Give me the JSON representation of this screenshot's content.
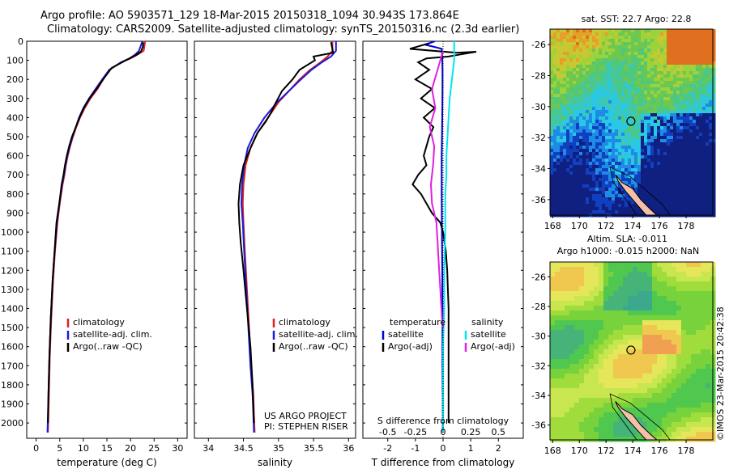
{
  "header": {
    "line1": "Argo profile: AO 5903571_129 18-Mar-2015 20150318_1094 30.943S 173.864E",
    "line2": "Climatology: CARS2009. Satellite-adjusted climatology: synTS_20150316.nc (2.3d earlier)"
  },
  "colors": {
    "climatology": "#e0201c",
    "satellite": "#1a1adc",
    "argo": "#000000",
    "satellite_t": "#0000dd",
    "satellite_s": "#00e6f0",
    "argo_s": "#e020e0"
  },
  "chart_data": [
    {
      "type": "line",
      "xlabel": "temperature (deg C)",
      "ylabel": "",
      "xlim": [
        -2,
        32
      ],
      "ylim": [
        2080,
        0
      ],
      "xticks": [
        0,
        5,
        10,
        15,
        20,
        25,
        30
      ],
      "yticks": [
        0,
        100,
        200,
        300,
        400,
        500,
        600,
        700,
        800,
        900,
        1000,
        1100,
        1200,
        1300,
        1400,
        1500,
        1600,
        1700,
        1800,
        1900,
        2000
      ],
      "legend": {
        "placement": "lower-left",
        "labels": [
          "climatology",
          "satellite-adj. clim.",
          "Argo(..raw -QC)"
        ]
      },
      "series": [
        {
          "name": "climatology",
          "x": [
            23.1,
            22.8,
            21.5,
            20,
            18,
            15.5,
            14.2,
            13,
            11.5,
            10.3,
            9.3,
            8.5,
            7.8,
            7.2,
            6.7,
            6.3,
            6,
            5.6,
            5,
            4.5,
            4,
            3.6,
            3.2,
            2.9,
            2.7,
            2.6,
            2.5
          ],
          "y": [
            0,
            50,
            70,
            90,
            110,
            150,
            200,
            250,
            300,
            350,
            400,
            450,
            500,
            550,
            600,
            650,
            700,
            750,
            850,
            950,
            1100,
            1250,
            1450,
            1650,
            1850,
            1950,
            2050
          ]
        },
        {
          "name": "satellite-adj. clim.",
          "x": [
            22.5,
            21.8,
            21,
            19.8,
            18,
            15.5,
            14,
            12.6,
            11.2,
            10,
            9.1,
            8.4,
            7.7,
            7.1,
            6.6,
            6.2,
            5.9,
            5.5,
            4.9,
            4.4,
            3.9,
            3.5,
            3.1,
            2.8,
            2.6,
            2.5,
            2.4
          ],
          "y": [
            0,
            50,
            70,
            90,
            110,
            150,
            200,
            250,
            300,
            350,
            400,
            450,
            500,
            550,
            600,
            650,
            700,
            750,
            850,
            950,
            1100,
            1250,
            1450,
            1650,
            1850,
            1950,
            2050
          ]
        },
        {
          "name": "Argo(..raw -QC)",
          "x": [
            22.7,
            22.6,
            22.2,
            21,
            19,
            16,
            14.2,
            12.8,
            11.3,
            10.1,
            9.2,
            8.4,
            7.6,
            7,
            6.5,
            6.1,
            5.8,
            5.4,
            4.9,
            4.3,
            3.9,
            3.5,
            3.1,
            2.8,
            2.6,
            2.5
          ],
          "y": [
            5,
            30,
            55,
            75,
            100,
            140,
            200,
            250,
            300,
            350,
            400,
            450,
            500,
            550,
            600,
            650,
            700,
            750,
            850,
            950,
            1100,
            1250,
            1450,
            1650,
            1850,
            2000
          ]
        }
      ]
    },
    {
      "type": "line",
      "xlabel": "salinity",
      "ylabel": "",
      "xlim": [
        33.8,
        36.1
      ],
      "ylim": [
        2080,
        0
      ],
      "xticks": [
        34,
        34.5,
        35,
        35.5,
        36
      ],
      "legend": {
        "placement": "lower-right",
        "labels": [
          "climatology",
          "satellite-adj. clim.",
          "Argo(..raw -QC)"
        ]
      },
      "annotations": [
        "US ARGO PROJECT",
        "PI: STEPHEN RISER"
      ],
      "series": [
        {
          "name": "climatology",
          "x": [
            35.77,
            35.77,
            35.7,
            35.6,
            35.45,
            35.3,
            35.15,
            35,
            34.85,
            34.7,
            34.6,
            34.53,
            34.5,
            34.49,
            34.5,
            34.52,
            34.55,
            34.58,
            34.61,
            34.64,
            34.65,
            34.66
          ],
          "y": [
            0,
            50,
            80,
            110,
            150,
            200,
            260,
            320,
            400,
            480,
            560,
            650,
            750,
            850,
            950,
            1100,
            1300,
            1500,
            1700,
            1850,
            1950,
            2050
          ]
        },
        {
          "name": "satellite-adj. clim.",
          "x": [
            35.82,
            35.82,
            35.75,
            35.62,
            35.47,
            35.32,
            35.15,
            34.98,
            34.8,
            34.66,
            34.56,
            34.51,
            34.48,
            34.47,
            34.49,
            34.51,
            34.54,
            34.57,
            34.6,
            34.63,
            34.64,
            34.65
          ],
          "y": [
            0,
            50,
            80,
            110,
            150,
            200,
            260,
            320,
            400,
            480,
            560,
            650,
            750,
            850,
            950,
            1100,
            1300,
            1500,
            1700,
            1850,
            1950,
            2050
          ]
        },
        {
          "name": "Argo(..raw -QC)",
          "x": [
            35.75,
            35.78,
            35.5,
            35.52,
            35.3,
            35.2,
            35.05,
            34.95,
            34.9,
            34.82,
            34.7,
            34.6,
            34.5,
            34.45,
            34.43,
            34.44,
            34.46,
            34.5,
            34.55,
            34.6,
            34.63,
            34.65
          ],
          "y": [
            5,
            60,
            80,
            100,
            150,
            200,
            260,
            330,
            370,
            420,
            480,
            560,
            650,
            750,
            850,
            950,
            1050,
            1200,
            1400,
            1600,
            1800,
            2000
          ]
        }
      ]
    },
    {
      "type": "line",
      "xlabel": "T difference from climatology",
      "xlabel_top": "S difference from climatology",
      "xlim": [
        -2.9,
        2.9
      ],
      "ylim": [
        2080,
        0
      ],
      "xticks": [
        -2,
        -1,
        0,
        1,
        2
      ],
      "xticks_top": [
        "-0.5",
        "-0.25",
        "0",
        "0.25",
        "0.5"
      ],
      "legend": {
        "placement": "lower",
        "labels": [
          "temperature",
          "satellite",
          "Argo(-adj)",
          "salinity",
          "satellite",
          "Argo(-adj)"
        ]
      },
      "series": [
        {
          "name": "satellite",
          "group": "temperature",
          "x": [
            -0.3,
            -0.5,
            -0.6,
            -0.3,
            -0.05,
            -0.03,
            -0.02,
            -0.02,
            -0.03,
            -0.05,
            -0.05,
            -0.04,
            -0.03,
            -0.02,
            -0.02,
            -0.01,
            -0.01
          ],
          "y": [
            0,
            10,
            20,
            30,
            40,
            80,
            150,
            250,
            400,
            600,
            800,
            1000,
            1200,
            1500,
            1700,
            1900,
            2050
          ]
        },
        {
          "name": "Argo(-adj)",
          "group": "temperature",
          "x": [
            -0.5,
            -1.2,
            0.5,
            1.2,
            0.8,
            0.2,
            -0.6,
            -0.9,
            -0.5,
            -1.0,
            -0.4,
            -0.8,
            -0.3,
            -0.7,
            -0.35,
            -0.5,
            -0.6,
            -0.7,
            -0.6,
            -0.9,
            -1.1,
            -0.8,
            -0.4,
            -0.1,
            0.0,
            0.1,
            0.15,
            0.2,
            0.2,
            0.2,
            0.2,
            0.2
          ],
          "y": [
            10,
            40,
            60,
            55,
            65,
            80,
            90,
            110,
            150,
            200,
            250,
            300,
            350,
            400,
            450,
            500,
            550,
            600,
            650,
            700,
            750,
            800,
            900,
            950,
            1000,
            1100,
            1200,
            1400,
            1600,
            1800,
            1900,
            2000
          ]
        },
        {
          "name": "satellite",
          "group": "salinity",
          "x": [
            0.1,
            0.1,
            0.08,
            0.06,
            0.05,
            0.04,
            0.03,
            0.03,
            0.02,
            0.02,
            0.02,
            0.01,
            0.01,
            0.0,
            0.0,
            0.0
          ],
          "y": [
            0,
            100,
            200,
            300,
            400,
            500,
            600,
            700,
            800,
            900,
            1000,
            1200,
            1400,
            1600,
            1800,
            2050
          ]
        },
        {
          "name": "Argo(-adj)",
          "group": "salinity",
          "x": [
            0.0,
            -0.05,
            -0.1,
            -0.07,
            -0.12,
            -0.08,
            -0.09,
            -0.11,
            -0.1,
            -0.06,
            -0.05,
            -0.04,
            -0.03,
            -0.02,
            -0.01,
            0.0
          ],
          "y": [
            50,
            150,
            250,
            350,
            450,
            550,
            650,
            750,
            850,
            950,
            1050,
            1150,
            1250,
            1350,
            1450,
            1500
          ]
        }
      ]
    },
    {
      "type": "heatmap",
      "title": "sat. SST: 22.7  Argo: 22.8",
      "xticks": [
        168,
        170,
        172,
        174,
        176,
        178
      ],
      "yticks": [
        -26,
        -28,
        -30,
        -32,
        -34,
        -36
      ],
      "xlim": [
        167.8,
        180
      ],
      "ylim": [
        -37,
        -25
      ],
      "marker": {
        "lon": 173.864,
        "lat": -30.943
      }
    },
    {
      "type": "heatmap",
      "title": "Altim. SLA: -0.011",
      "subtitle": "Argo h1000: -0.015 h2000: NaN",
      "xticks": [
        168,
        170,
        172,
        174,
        176,
        178
      ],
      "yticks": [
        -26,
        -28,
        -30,
        -32,
        -34,
        -36
      ],
      "xlim": [
        167.8,
        180
      ],
      "ylim": [
        -37,
        -25
      ],
      "marker": {
        "lon": 173.864,
        "lat": -30.943
      }
    }
  ],
  "side_label": "©IMOS 23-Mar-2015 20:42:38"
}
